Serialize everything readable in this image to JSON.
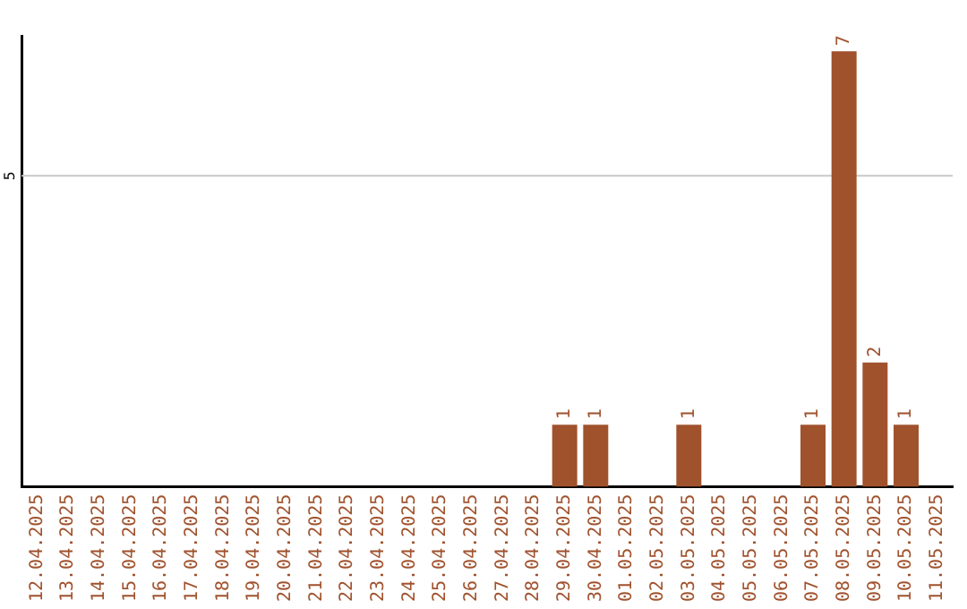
{
  "chart_data": {
    "type": "bar",
    "ylim": [
      0,
      7.25
    ],
    "categories": [
      "12.04.2025",
      "13.04.2025",
      "14.04.2025",
      "15.04.2025",
      "16.04.2025",
      "17.04.2025",
      "18.04.2025",
      "19.04.2025",
      "20.04.2025",
      "21.04.2025",
      "22.04.2025",
      "23.04.2025",
      "24.04.2025",
      "25.04.2025",
      "26.04.2025",
      "27.04.2025",
      "28.04.2025",
      "29.04.2025",
      "30.04.2025",
      "01.05.2025",
      "02.05.2025",
      "03.05.2025",
      "04.05.2025",
      "05.05.2025",
      "06.05.2025",
      "07.05.2025",
      "08.05.2025",
      "09.05.2025",
      "10.05.2025",
      "11.05.2025"
    ],
    "values": [
      null,
      null,
      null,
      null,
      null,
      null,
      null,
      null,
      null,
      null,
      null,
      null,
      null,
      null,
      null,
      null,
      null,
      1,
      1,
      null,
      null,
      1,
      null,
      null,
      null,
      1,
      7,
      2,
      1,
      null
    ],
    "data_labels": true,
    "color": "#a0522d",
    "ref_lines": [
      {
        "axis": "y",
        "value": 5,
        "label": "5",
        "color": "#c8c8c8"
      }
    ],
    "legend": false
  }
}
